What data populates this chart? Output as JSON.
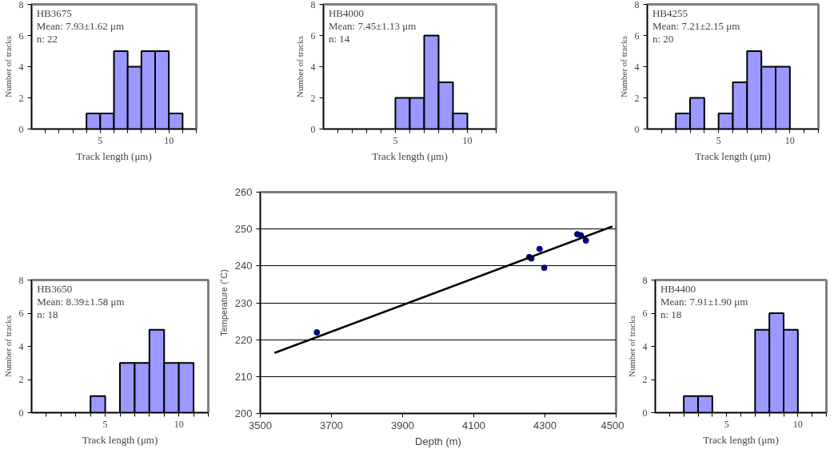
{
  "chart_data": [
    {
      "type": "histogram",
      "title": "HB3675",
      "annotations": [
        "Mean: 7.93±1.62 μm",
        "n: 22"
      ],
      "xlabel": "Track length (μm)",
      "ylabel": "Number of tracks",
      "bins": [
        4,
        5,
        6,
        7,
        8,
        9,
        10,
        11
      ],
      "values": [
        1,
        1,
        5,
        4,
        5,
        5,
        1
      ],
      "color": "#9999ff",
      "xlim": [
        0,
        12
      ],
      "ylim": [
        0,
        8
      ],
      "xticks": [
        {
          "value": 1,
          "label": null
        },
        {
          "value": 2,
          "label": null
        },
        {
          "value": 3,
          "label": null
        },
        {
          "value": 4,
          "label": null
        },
        5,
        {
          "value": 6,
          "label": null
        },
        {
          "value": 7,
          "label": null
        },
        {
          "value": 8,
          "label": null
        },
        {
          "value": 9,
          "label": null
        },
        10,
        {
          "value": 11,
          "label": null
        },
        {
          "value": 12,
          "label": null
        }
      ],
      "yticks": [
        0,
        2,
        4,
        6,
        8
      ]
    },
    {
      "type": "histogram",
      "title": "HB4000",
      "annotations": [
        "Mean: 7.45±1.13 μm",
        "n: 14"
      ],
      "xlabel": "Track length (μm)",
      "ylabel": "Number of tracks",
      "bins": [
        5,
        6,
        7,
        8,
        9,
        10
      ],
      "values": [
        2,
        2,
        6,
        3,
        1
      ],
      "color": "#9999ff",
      "xlim": [
        0,
        12
      ],
      "ylim": [
        0,
        8
      ],
      "xticks": [
        {
          "value": 1,
          "label": null
        },
        {
          "value": 2,
          "label": null
        },
        {
          "value": 3,
          "label": null
        },
        {
          "value": 4,
          "label": null
        },
        5,
        {
          "value": 6,
          "label": null
        },
        {
          "value": 7,
          "label": null
        },
        {
          "value": 8,
          "label": null
        },
        {
          "value": 9,
          "label": null
        },
        10,
        {
          "value": 11,
          "label": null
        },
        {
          "value": 12,
          "label": null
        }
      ],
      "yticks": [
        0,
        2,
        4,
        6,
        8
      ]
    },
    {
      "type": "histogram",
      "title": "HB4255",
      "annotations": [
        "Mean: 7.21±2.15 μm",
        "n: 20"
      ],
      "xlabel": "Track length (μm)",
      "ylabel": "Number of tracks",
      "bins": [
        2,
        3,
        4,
        5,
        6,
        7,
        8,
        9,
        10
      ],
      "values": [
        1,
        2,
        0,
        1,
        3,
        5,
        4,
        4
      ],
      "color": "#9999ff",
      "xlim": [
        0,
        12
      ],
      "ylim": [
        0,
        8
      ],
      "xticks": [
        {
          "value": 1,
          "label": null
        },
        {
          "value": 2,
          "label": null
        },
        {
          "value": 3,
          "label": null
        },
        {
          "value": 4,
          "label": null
        },
        5,
        {
          "value": 6,
          "label": null
        },
        {
          "value": 7,
          "label": null
        },
        {
          "value": 8,
          "label": null
        },
        {
          "value": 9,
          "label": null
        },
        10,
        {
          "value": 11,
          "label": null
        },
        {
          "value": 12,
          "label": null
        }
      ],
      "yticks": [
        0,
        2,
        4,
        6,
        8
      ]
    },
    {
      "type": "histogram",
      "title": "HB3650",
      "annotations": [
        "Mean: 8.39±1.58 μm",
        "n: 18"
      ],
      "xlabel": "Track length (μm)",
      "ylabel": "Number of tracks",
      "bins": [
        4,
        5,
        6,
        7,
        8,
        9,
        10,
        11
      ],
      "values": [
        1,
        0,
        3,
        3,
        5,
        3,
        3
      ],
      "color": "#9999ff",
      "xlim": [
        0,
        12
      ],
      "ylim": [
        0,
        8
      ],
      "xticks": [
        {
          "value": 1,
          "label": null
        },
        {
          "value": 2,
          "label": null
        },
        {
          "value": 3,
          "label": null
        },
        {
          "value": 4,
          "label": null
        },
        5,
        {
          "value": 6,
          "label": null
        },
        {
          "value": 7,
          "label": null
        },
        {
          "value": 8,
          "label": null
        },
        {
          "value": 9,
          "label": null
        },
        10,
        {
          "value": 11,
          "label": null
        },
        {
          "value": 12,
          "label": null
        }
      ],
      "yticks": [
        0,
        2,
        4,
        6,
        8
      ]
    },
    {
      "type": "scatter",
      "xlabel": "Depth (m)",
      "ylabel": "Temperature (˚C)",
      "xlim": [
        3500,
        4500
      ],
      "ylim": [
        200,
        260
      ],
      "xticks": [
        3500,
        3700,
        3900,
        4100,
        4300,
        4500
      ],
      "yticks": [
        200,
        210,
        220,
        230,
        240,
        250,
        260
      ],
      "grid": "y",
      "series": [
        {
          "marker": "circle",
          "color": "#000080",
          "x": [
            3659,
            4256,
            4262,
            4285,
            4298,
            4391,
            4401,
            4415
          ],
          "values": [
            222.0,
            242.4,
            242.0,
            244.6,
            239.5,
            248.6,
            248.3,
            246.9
          ]
        },
        {
          "type": "line",
          "marker": "none",
          "color": "#000000",
          "x": [
            3540,
            4490
          ],
          "values": [
            216.4,
            250.7
          ]
        }
      ]
    },
    {
      "type": "histogram",
      "title": "HB4400",
      "annotations": [
        "Mean: 7.91±1.90 μm",
        "n: 18"
      ],
      "xlabel": "Track length (μm)",
      "ylabel": "Number of tracks",
      "bins": [
        2,
        3,
        4,
        5,
        6,
        7,
        8,
        9,
        10
      ],
      "values": [
        1,
        1,
        0,
        0,
        0,
        5,
        6,
        5
      ],
      "color": "#9999ff",
      "xlim": [
        0,
        12
      ],
      "ylim": [
        0,
        8
      ],
      "xticks": [
        {
          "value": 1,
          "label": null
        },
        {
          "value": 2,
          "label": null
        },
        {
          "value": 3,
          "label": null
        },
        {
          "value": 4,
          "label": null
        },
        5,
        {
          "value": 6,
          "label": null
        },
        {
          "value": 7,
          "label": null
        },
        {
          "value": 8,
          "label": null
        },
        {
          "value": 9,
          "label": null
        },
        10,
        {
          "value": 11,
          "label": null
        },
        {
          "value": 12,
          "label": null
        }
      ],
      "yticks": [
        0,
        2,
        4,
        6,
        8
      ]
    }
  ]
}
